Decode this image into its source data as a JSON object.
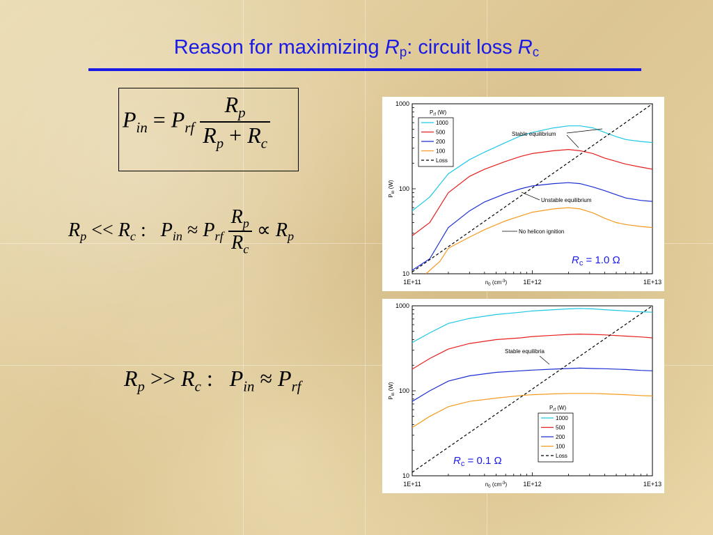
{
  "slide": {
    "title_prefix": "Reason for maximizing ",
    "title_var1": "R",
    "title_sub1": "p",
    "title_mid": ":  circuit loss ",
    "title_var2": "R",
    "title_sub2": "c"
  },
  "equations": {
    "eq1": {
      "lhs": "P",
      "lhs_sub": "in",
      "eq": "=",
      "p": "P",
      "p_sub": "rf",
      "num": "R",
      "num_sub": "p",
      "den1": "R",
      "den1_sub": "p",
      "plus": "+",
      "den2": "R",
      "den2_sub": "c"
    },
    "eq2": {
      "a": "R",
      "a_sub": "p",
      "rel": "<<",
      "b": "R",
      "b_sub": "c",
      "colon": ":",
      "p": "P",
      "p_sub": "in",
      "approx": "≈",
      "prf": "P",
      "prf_sub": "rf",
      "num": "R",
      "num_sub": "p",
      "den": "R",
      "den_sub": "c",
      "prop": "∝",
      "r": "R",
      "r_sub": "p"
    },
    "eq3": {
      "a": "R",
      "a_sub": "p",
      "rel": ">>",
      "b": "R",
      "b_sub": "c",
      "colon": ":",
      "p": "P",
      "p_sub": "in",
      "approx": "≈",
      "prf": "P",
      "prf_sub": "rf"
    }
  },
  "colors": {
    "title": "#1a1ae6",
    "p1000": "#1ec8e6",
    "p500": "#e61e1e",
    "p200": "#1a2ed2",
    "p100": "#f59a1e",
    "loss": "#000000"
  },
  "chart_data": [
    {
      "type": "line",
      "xscale": "log",
      "yscale": "log",
      "xlim": [
        100000000000.0,
        10000000000000.0
      ],
      "ylim": [
        10,
        1000
      ],
      "xlabel": "n0 (cm-3)",
      "ylabel": "Pin (W)",
      "xticks": [
        "1E+11",
        "1E+12",
        "1E+13"
      ],
      "yticks": [
        "10",
        "100",
        "1000"
      ],
      "legend_title": "Prf (W)",
      "legend_position": "top-left",
      "series": [
        {
          "name": "1000",
          "color": "#1ec8e6",
          "dash": false,
          "x": [
            100000000000.0,
            140000000000.0,
            200000000000.0,
            300000000000.0,
            400000000000.0,
            600000000000.0,
            800000000000.0,
            1000000000000.0,
            1500000000000.0,
            2000000000000.0,
            2500000000000.0,
            3200000000000.0,
            4000000000000.0,
            5000000000000.0,
            6000000000000.0,
            8000000000000.0,
            10000000000000.0
          ],
          "y": [
            55,
            80,
            150,
            220,
            270,
            350,
            420,
            460,
            520,
            550,
            550,
            520,
            460,
            410,
            380,
            360,
            350
          ]
        },
        {
          "name": "500",
          "color": "#e61e1e",
          "dash": false,
          "x": [
            100000000000.0,
            140000000000.0,
            200000000000.0,
            300000000000.0,
            400000000000.0,
            600000000000.0,
            800000000000.0,
            1000000000000.0,
            1500000000000.0,
            2000000000000.0,
            2500000000000.0,
            3200000000000.0,
            4000000000000.0,
            5000000000000.0,
            6000000000000.0,
            8000000000000.0,
            10000000000000.0
          ],
          "y": [
            28,
            40,
            90,
            140,
            170,
            210,
            240,
            260,
            280,
            290,
            280,
            260,
            230,
            210,
            195,
            180,
            170
          ]
        },
        {
          "name": "200",
          "color": "#1a2ed2",
          "dash": false,
          "x": [
            100000000000.0,
            140000000000.0,
            200000000000.0,
            300000000000.0,
            400000000000.0,
            600000000000.0,
            800000000000.0,
            1000000000000.0,
            1500000000000.0,
            2000000000000.0,
            2500000000000.0,
            3200000000000.0,
            4000000000000.0,
            5000000000000.0,
            6000000000000.0,
            8000000000000.0,
            10000000000000.0
          ],
          "y": [
            11,
            15,
            35,
            55,
            70,
            88,
            100,
            108,
            115,
            118,
            115,
            105,
            95,
            85,
            78,
            73,
            71
          ]
        },
        {
          "name": "100",
          "color": "#f59a1e",
          "dash": false,
          "x": [
            130000000000.0,
            170000000000.0,
            200000000000.0,
            300000000000.0,
            400000000000.0,
            600000000000.0,
            800000000000.0,
            1000000000000.0,
            1500000000000.0,
            2000000000000.0,
            2500000000000.0,
            3200000000000.0,
            4000000000000.0,
            5000000000000.0,
            6000000000000.0,
            8000000000000.0,
            10000000000000.0
          ],
          "y": [
            10,
            14,
            20,
            27,
            33,
            42,
            48,
            53,
            58,
            60,
            58,
            52,
            45,
            40,
            38,
            36,
            35
          ]
        },
        {
          "name": "Loss",
          "color": "#000000",
          "dash": true,
          "x": [
            100000000000.0,
            10000000000000.0
          ],
          "y": [
            10.5,
            1000
          ]
        }
      ],
      "annotations": [
        {
          "text": "Stable equilibrium"
        },
        {
          "text": "Unstable equilibrium"
        },
        {
          "text": "No helicon ignition"
        }
      ],
      "rc_label": {
        "var": "R",
        "sub": "c",
        "value": " = 1.0 Ω"
      }
    },
    {
      "type": "line",
      "xscale": "log",
      "yscale": "log",
      "xlim": [
        100000000000.0,
        10000000000000.0
      ],
      "ylim": [
        10,
        1000
      ],
      "xlabel": "n0 (cm-3)",
      "ylabel": "Pin (W)",
      "xticks": [
        "1E+11",
        "1E+12",
        "1E+13"
      ],
      "yticks": [
        "10",
        "100",
        "1000"
      ],
      "legend_title": "Prf (W)",
      "legend_position": "bottom-right",
      "series": [
        {
          "name": "1000",
          "color": "#1ec8e6",
          "dash": false,
          "x": [
            100000000000.0,
            140000000000.0,
            200000000000.0,
            300000000000.0,
            500000000000.0,
            800000000000.0,
            1000000000000.0,
            1500000000000.0,
            2000000000000.0,
            2500000000000.0,
            3200000000000.0,
            4000000000000.0,
            6000000000000.0,
            8000000000000.0,
            10000000000000.0
          ],
          "y": [
            370,
            480,
            620,
            710,
            790,
            840,
            870,
            900,
            920,
            930,
            920,
            900,
            870,
            850,
            840
          ]
        },
        {
          "name": "500",
          "color": "#e61e1e",
          "dash": false,
          "x": [
            100000000000.0,
            140000000000.0,
            200000000000.0,
            300000000000.0,
            500000000000.0,
            800000000000.0,
            1000000000000.0,
            1500000000000.0,
            2000000000000.0,
            2500000000000.0,
            3200000000000.0,
            4000000000000.0,
            6000000000000.0,
            8000000000000.0,
            10000000000000.0
          ],
          "y": [
            180,
            240,
            310,
            360,
            400,
            420,
            435,
            450,
            460,
            465,
            460,
            455,
            440,
            430,
            420
          ]
        },
        {
          "name": "200",
          "color": "#1a2ed2",
          "dash": false,
          "x": [
            100000000000.0,
            140000000000.0,
            200000000000.0,
            300000000000.0,
            500000000000.0,
            800000000000.0,
            1000000000000.0,
            1500000000000.0,
            2000000000000.0,
            2500000000000.0,
            3200000000000.0,
            4000000000000.0,
            6000000000000.0,
            8000000000000.0,
            10000000000000.0
          ],
          "y": [
            75,
            100,
            130,
            150,
            165,
            172,
            175,
            180,
            183,
            185,
            183,
            182,
            178,
            174,
            172
          ]
        },
        {
          "name": "100",
          "color": "#f59a1e",
          "dash": false,
          "x": [
            100000000000.0,
            140000000000.0,
            200000000000.0,
            300000000000.0,
            500000000000.0,
            800000000000.0,
            1000000000000.0,
            1500000000000.0,
            2000000000000.0,
            2500000000000.0,
            3200000000000.0,
            4000000000000.0,
            6000000000000.0,
            8000000000000.0,
            10000000000000.0
          ],
          "y": [
            37,
            50,
            65,
            75,
            82,
            88,
            90,
            92,
            93,
            93,
            93,
            92,
            90,
            88,
            87
          ]
        },
        {
          "name": "Loss",
          "color": "#000000",
          "dash": true,
          "x": [
            100000000000.0,
            10000000000000.0
          ],
          "y": [
            11,
            1000
          ]
        }
      ],
      "annotations": [
        {
          "text": "Stable equilibria"
        }
      ],
      "rc_label": {
        "var": "R",
        "sub": "c",
        "value": " = 0.1 Ω"
      }
    }
  ]
}
